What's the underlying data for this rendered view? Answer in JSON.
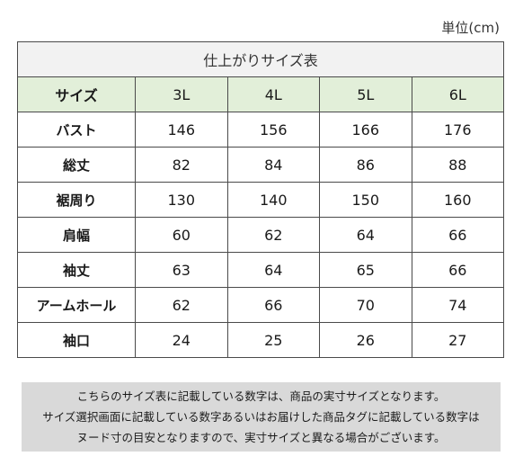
{
  "unit_label": "単位(cm)",
  "table": {
    "title": "仕上がりサイズ表",
    "header_label": "サイズ",
    "sizes": [
      "3L",
      "4L",
      "5L",
      "6L"
    ],
    "rows": [
      {
        "label": "バスト",
        "values": [
          "146",
          "156",
          "166",
          "176"
        ]
      },
      {
        "label": "総丈",
        "values": [
          "82",
          "84",
          "86",
          "88"
        ]
      },
      {
        "label": "裾周り",
        "values": [
          "130",
          "140",
          "150",
          "160"
        ]
      },
      {
        "label": "肩幅",
        "values": [
          "60",
          "62",
          "64",
          "66"
        ]
      },
      {
        "label": "袖丈",
        "values": [
          "63",
          "64",
          "65",
          "66"
        ]
      },
      {
        "label": "アームホール",
        "values": [
          "62",
          "66",
          "70",
          "74"
        ]
      },
      {
        "label": "袖口",
        "values": [
          "24",
          "25",
          "26",
          "27"
        ]
      }
    ]
  },
  "note": {
    "lines": [
      "こちらのサイズ表に記載している数字は、商品の実寸サイズとなります。",
      "サイズ選択画面に記載している数字あるいはお届けした商品タグに記載している数字は",
      "ヌード寸の目安となりますので、実寸サイズと異なる場合がございます。"
    ]
  }
}
